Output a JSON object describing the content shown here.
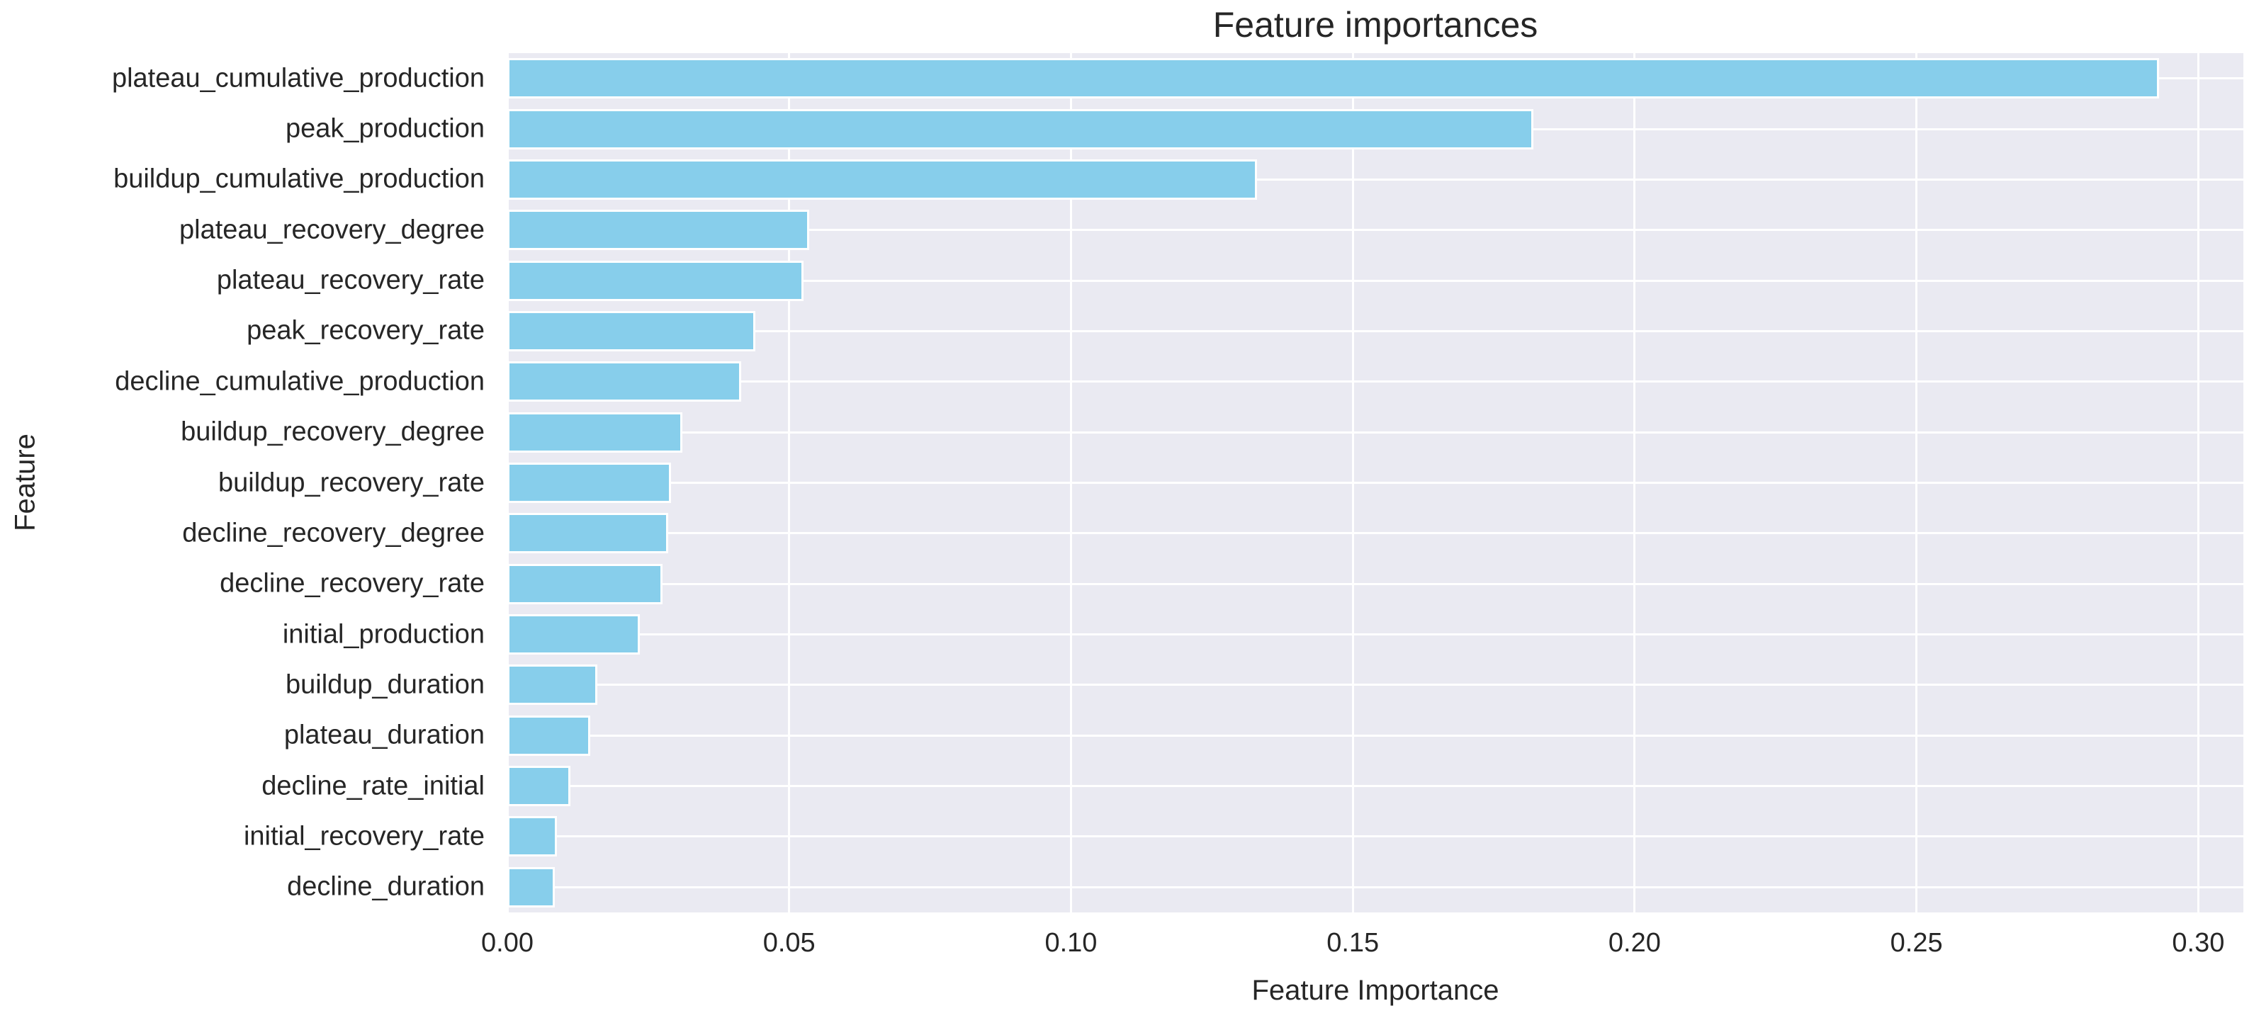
{
  "chart_data": {
    "type": "bar",
    "orientation": "horizontal",
    "title": "Feature importances",
    "xlabel": "Feature Importance",
    "ylabel": "Feature",
    "legend": null,
    "grid": true,
    "xlim": [
      0,
      0.308
    ],
    "xticks": [
      0,
      0.05,
      0.1,
      0.15,
      0.2,
      0.25,
      0.3
    ],
    "xtick_labels": [
      "0.00",
      "0.05",
      "0.10",
      "0.15",
      "0.20",
      "0.25",
      "0.30"
    ],
    "categories": [
      "plateau_cumulative_production",
      "peak_production",
      "buildup_cumulative_production",
      "plateau_recovery_degree",
      "plateau_recovery_rate",
      "peak_recovery_rate",
      "decline_cumulative_production",
      "buildup_recovery_degree",
      "buildup_recovery_rate",
      "decline_recovery_degree",
      "decline_recovery_rate",
      "initial_production",
      "buildup_duration",
      "plateau_duration",
      "decline_rate_initial",
      "initial_recovery_rate",
      "decline_duration"
    ],
    "values": [
      0.293,
      0.182,
      0.133,
      0.0535,
      0.0525,
      0.044,
      0.0415,
      0.031,
      0.029,
      0.0285,
      0.0275,
      0.0235,
      0.016,
      0.0147,
      0.0112,
      0.0088,
      0.0084
    ],
    "colors": {
      "bar_fill": "#87ceeb",
      "bar_edge": "#ffffff",
      "plot_background": "#eaeaf2",
      "gridline": "#ffffff",
      "text": "#262626",
      "page_background": "#ffffff"
    }
  }
}
